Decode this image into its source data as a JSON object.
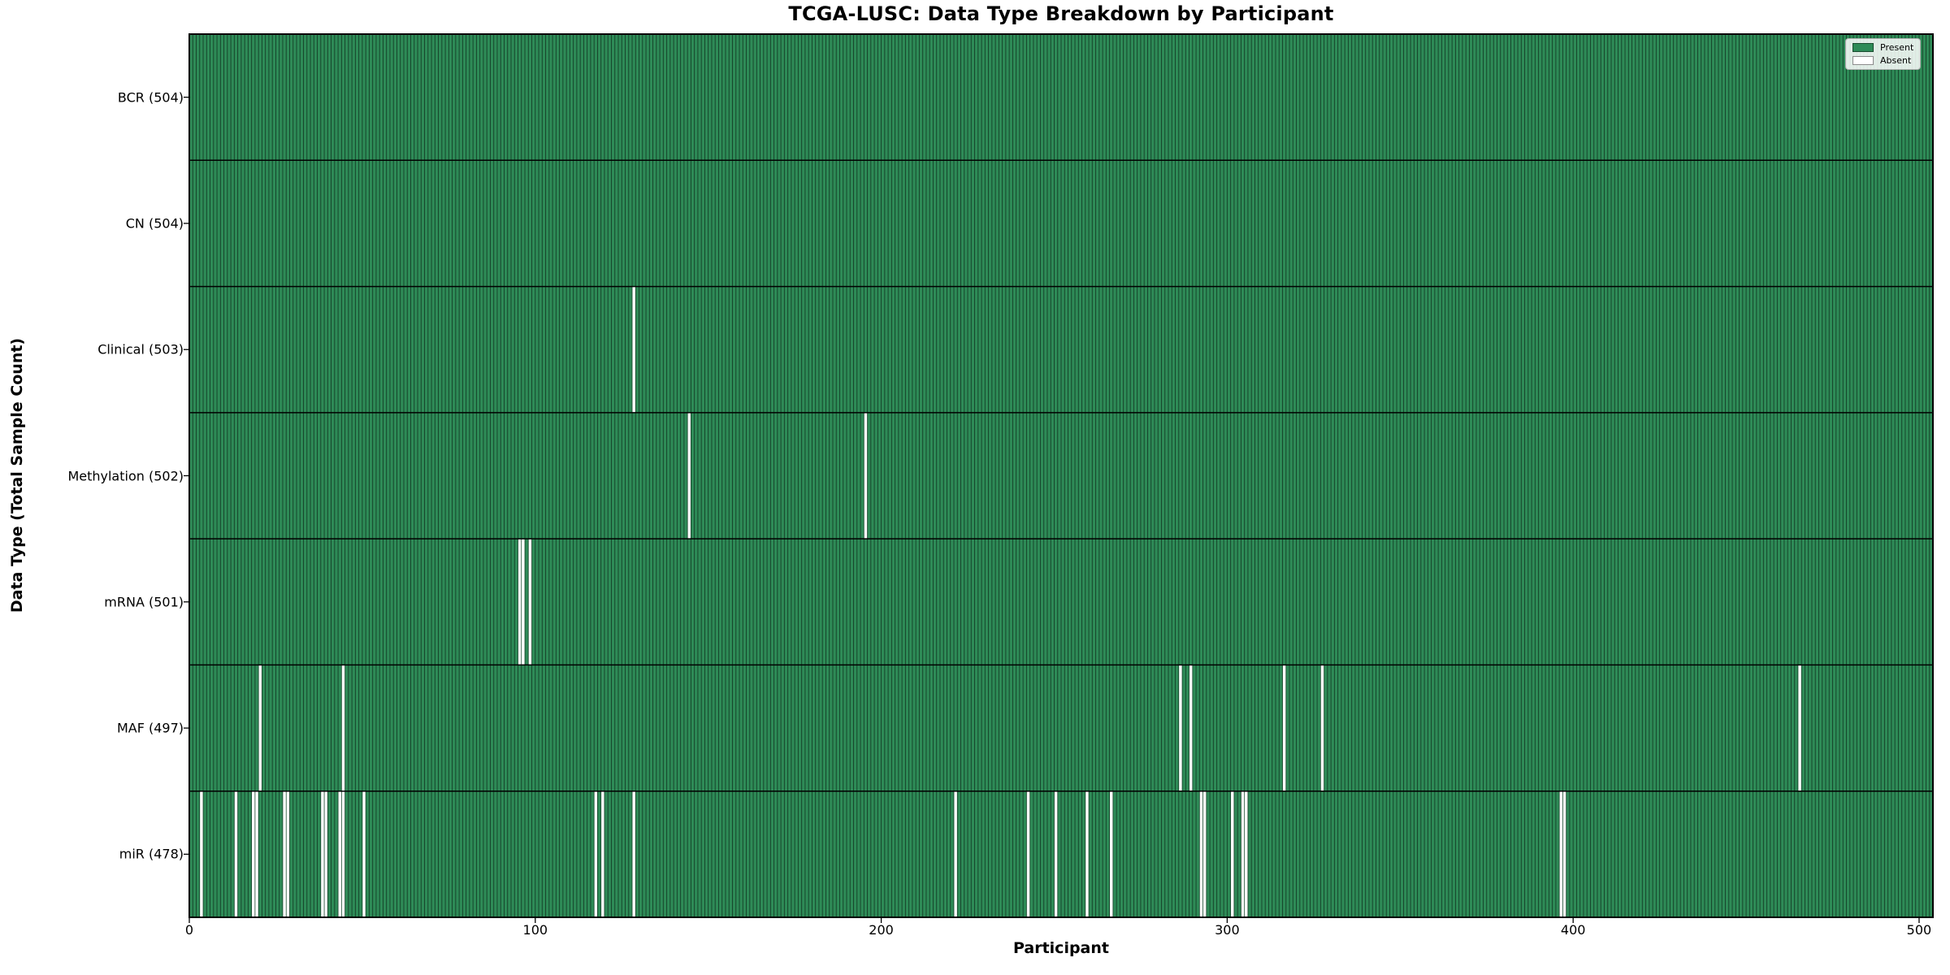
{
  "chart_data": {
    "type": "heatmap",
    "title": "TCGA-LUSC: Data Type Breakdown by Participant",
    "xlabel": "Participant",
    "ylabel": "Data Type (Total Sample Count)",
    "n_participants": 504,
    "x_ticks": [
      0,
      100,
      200,
      300,
      400,
      500
    ],
    "xlim": [
      0,
      504
    ],
    "grid": false,
    "legend_position": "upper right",
    "legend": [
      {
        "label": "Present",
        "color": "#2E8B57"
      },
      {
        "label": "Absent",
        "color": "#FFFFFF"
      }
    ],
    "colors": {
      "present": "#2E8B57",
      "absent": "#FFFFFF",
      "bar_edge": "rgba(0,0,0,0.55)",
      "row_separator": "#000000",
      "spine": "#000000"
    },
    "rows": [
      {
        "label": "BCR (504)",
        "data_type": "BCR",
        "present_count": 504,
        "absent_participants": []
      },
      {
        "label": "CN (504)",
        "data_type": "CN",
        "present_count": 504,
        "absent_participants": []
      },
      {
        "label": "Clinical (503)",
        "data_type": "Clinical",
        "present_count": 503,
        "absent_participants": [
          129
        ]
      },
      {
        "label": "Methylation (502)",
        "data_type": "Methylation",
        "present_count": 502,
        "absent_participants": [
          145,
          196
        ]
      },
      {
        "label": "mRNA (501)",
        "data_type": "mRNA",
        "present_count": 501,
        "absent_participants": [
          96,
          97,
          99
        ]
      },
      {
        "label": "MAF (497)",
        "data_type": "MAF",
        "present_count": 497,
        "absent_participants": [
          21,
          45,
          287,
          290,
          317,
          328,
          466
        ]
      },
      {
        "label": "miR (478)",
        "data_type": "miR",
        "present_count": 478,
        "absent_participants": [
          4,
          14,
          19,
          20,
          28,
          29,
          39,
          40,
          44,
          45,
          51,
          118,
          120,
          129,
          222,
          243,
          251,
          260,
          267,
          293,
          294,
          302,
          305,
          306,
          397,
          398
        ]
      }
    ]
  }
}
